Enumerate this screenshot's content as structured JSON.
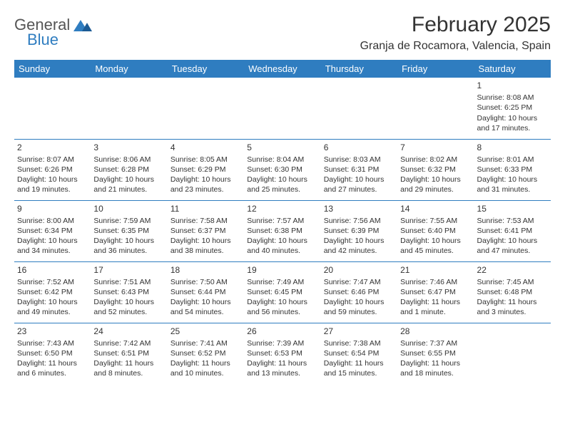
{
  "colors": {
    "header_bg": "#2f7dc0",
    "header_text": "#ffffff",
    "border": "#2f7dc0",
    "text": "#333333",
    "logo_gray": "#555555",
    "logo_blue": "#2f7dc0",
    "background": "#ffffff"
  },
  "fonts": {
    "title_size_pt": 30,
    "location_size_pt": 16,
    "dayheader_size_pt": 13,
    "cell_size_pt": 10.5,
    "daynum_size_pt": 12
  },
  "logo": {
    "line1": "General",
    "line2": "Blue"
  },
  "title": "February 2025",
  "location": "Granja de Rocamora, Valencia, Spain",
  "day_headers": [
    "Sunday",
    "Monday",
    "Tuesday",
    "Wednesday",
    "Thursday",
    "Friday",
    "Saturday"
  ],
  "weeks": [
    [
      null,
      null,
      null,
      null,
      null,
      null,
      {
        "n": "1",
        "sr": "Sunrise: 8:08 AM",
        "ss": "Sunset: 6:25 PM",
        "dl": "Daylight: 10 hours and 17 minutes."
      }
    ],
    [
      {
        "n": "2",
        "sr": "Sunrise: 8:07 AM",
        "ss": "Sunset: 6:26 PM",
        "dl": "Daylight: 10 hours and 19 minutes."
      },
      {
        "n": "3",
        "sr": "Sunrise: 8:06 AM",
        "ss": "Sunset: 6:28 PM",
        "dl": "Daylight: 10 hours and 21 minutes."
      },
      {
        "n": "4",
        "sr": "Sunrise: 8:05 AM",
        "ss": "Sunset: 6:29 PM",
        "dl": "Daylight: 10 hours and 23 minutes."
      },
      {
        "n": "5",
        "sr": "Sunrise: 8:04 AM",
        "ss": "Sunset: 6:30 PM",
        "dl": "Daylight: 10 hours and 25 minutes."
      },
      {
        "n": "6",
        "sr": "Sunrise: 8:03 AM",
        "ss": "Sunset: 6:31 PM",
        "dl": "Daylight: 10 hours and 27 minutes."
      },
      {
        "n": "7",
        "sr": "Sunrise: 8:02 AM",
        "ss": "Sunset: 6:32 PM",
        "dl": "Daylight: 10 hours and 29 minutes."
      },
      {
        "n": "8",
        "sr": "Sunrise: 8:01 AM",
        "ss": "Sunset: 6:33 PM",
        "dl": "Daylight: 10 hours and 31 minutes."
      }
    ],
    [
      {
        "n": "9",
        "sr": "Sunrise: 8:00 AM",
        "ss": "Sunset: 6:34 PM",
        "dl": "Daylight: 10 hours and 34 minutes."
      },
      {
        "n": "10",
        "sr": "Sunrise: 7:59 AM",
        "ss": "Sunset: 6:35 PM",
        "dl": "Daylight: 10 hours and 36 minutes."
      },
      {
        "n": "11",
        "sr": "Sunrise: 7:58 AM",
        "ss": "Sunset: 6:37 PM",
        "dl": "Daylight: 10 hours and 38 minutes."
      },
      {
        "n": "12",
        "sr": "Sunrise: 7:57 AM",
        "ss": "Sunset: 6:38 PM",
        "dl": "Daylight: 10 hours and 40 minutes."
      },
      {
        "n": "13",
        "sr": "Sunrise: 7:56 AM",
        "ss": "Sunset: 6:39 PM",
        "dl": "Daylight: 10 hours and 42 minutes."
      },
      {
        "n": "14",
        "sr": "Sunrise: 7:55 AM",
        "ss": "Sunset: 6:40 PM",
        "dl": "Daylight: 10 hours and 45 minutes."
      },
      {
        "n": "15",
        "sr": "Sunrise: 7:53 AM",
        "ss": "Sunset: 6:41 PM",
        "dl": "Daylight: 10 hours and 47 minutes."
      }
    ],
    [
      {
        "n": "16",
        "sr": "Sunrise: 7:52 AM",
        "ss": "Sunset: 6:42 PM",
        "dl": "Daylight: 10 hours and 49 minutes."
      },
      {
        "n": "17",
        "sr": "Sunrise: 7:51 AM",
        "ss": "Sunset: 6:43 PM",
        "dl": "Daylight: 10 hours and 52 minutes."
      },
      {
        "n": "18",
        "sr": "Sunrise: 7:50 AM",
        "ss": "Sunset: 6:44 PM",
        "dl": "Daylight: 10 hours and 54 minutes."
      },
      {
        "n": "19",
        "sr": "Sunrise: 7:49 AM",
        "ss": "Sunset: 6:45 PM",
        "dl": "Daylight: 10 hours and 56 minutes."
      },
      {
        "n": "20",
        "sr": "Sunrise: 7:47 AM",
        "ss": "Sunset: 6:46 PM",
        "dl": "Daylight: 10 hours and 59 minutes."
      },
      {
        "n": "21",
        "sr": "Sunrise: 7:46 AM",
        "ss": "Sunset: 6:47 PM",
        "dl": "Daylight: 11 hours and 1 minute."
      },
      {
        "n": "22",
        "sr": "Sunrise: 7:45 AM",
        "ss": "Sunset: 6:48 PM",
        "dl": "Daylight: 11 hours and 3 minutes."
      }
    ],
    [
      {
        "n": "23",
        "sr": "Sunrise: 7:43 AM",
        "ss": "Sunset: 6:50 PM",
        "dl": "Daylight: 11 hours and 6 minutes."
      },
      {
        "n": "24",
        "sr": "Sunrise: 7:42 AM",
        "ss": "Sunset: 6:51 PM",
        "dl": "Daylight: 11 hours and 8 minutes."
      },
      {
        "n": "25",
        "sr": "Sunrise: 7:41 AM",
        "ss": "Sunset: 6:52 PM",
        "dl": "Daylight: 11 hours and 10 minutes."
      },
      {
        "n": "26",
        "sr": "Sunrise: 7:39 AM",
        "ss": "Sunset: 6:53 PM",
        "dl": "Daylight: 11 hours and 13 minutes."
      },
      {
        "n": "27",
        "sr": "Sunrise: 7:38 AM",
        "ss": "Sunset: 6:54 PM",
        "dl": "Daylight: 11 hours and 15 minutes."
      },
      {
        "n": "28",
        "sr": "Sunrise: 7:37 AM",
        "ss": "Sunset: 6:55 PM",
        "dl": "Daylight: 11 hours and 18 minutes."
      },
      null
    ]
  ]
}
